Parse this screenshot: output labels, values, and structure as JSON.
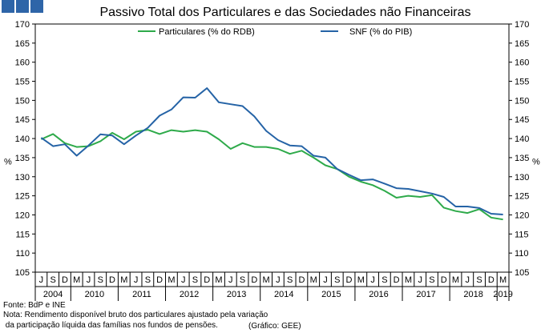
{
  "chart_data": {
    "type": "line",
    "title": "Passivo Total dos Particulares e das Sociedades não Financeiras",
    "ylabel_left": "%",
    "ylabel_right": "%",
    "ylim": [
      105,
      170
    ],
    "yticks": [
      105,
      110,
      115,
      120,
      125,
      130,
      135,
      140,
      145,
      150,
      155,
      160,
      165,
      170
    ],
    "quarter_labels": [
      "J",
      "S",
      "D",
      "M",
      "J",
      "S",
      "D",
      "M",
      "J",
      "S",
      "D",
      "M",
      "J",
      "S",
      "D",
      "M",
      "J",
      "S",
      "D",
      "M",
      "J",
      "S",
      "D",
      "M",
      "J",
      "S",
      "D",
      "M",
      "J",
      "S",
      "D",
      "M",
      "J",
      "S",
      "D",
      "M",
      "J",
      "S",
      "D",
      "M"
    ],
    "year_labels": [
      {
        "label": "2004",
        "start": 0,
        "end": 3
      },
      {
        "label": "2010",
        "start": 3,
        "end": 7
      },
      {
        "label": "2011",
        "start": 7,
        "end": 11
      },
      {
        "label": "2012",
        "start": 11,
        "end": 15
      },
      {
        "label": "2013",
        "start": 15,
        "end": 19
      },
      {
        "label": "2014",
        "start": 19,
        "end": 23
      },
      {
        "label": "2015",
        "start": 23,
        "end": 27
      },
      {
        "label": "2016",
        "start": 27,
        "end": 31
      },
      {
        "label": "2017",
        "start": 31,
        "end": 35
      },
      {
        "label": "2018",
        "start": 35,
        "end": 39
      },
      {
        "label": "2019",
        "start": 39,
        "end": 40
      }
    ],
    "series": [
      {
        "name": "Particulares (% do RDB)",
        "color": "#2eaa4a",
        "values": [
          139.8,
          141.2,
          138.8,
          137.8,
          138.0,
          139.3,
          141.5,
          139.8,
          141.8,
          142.3,
          141.2,
          142.2,
          141.8,
          142.2,
          141.8,
          139.8,
          137.3,
          138.8,
          137.8,
          137.8,
          137.3,
          136.0,
          136.8,
          135.0,
          133.0,
          132.0,
          130.0,
          128.7,
          127.8,
          126.3,
          124.5,
          125.0,
          124.7,
          125.2,
          121.9,
          121.0,
          120.5,
          121.5,
          119.3,
          118.8
        ]
      },
      {
        "name": "SNF (% do PIB)",
        "color": "#2563a6",
        "values": [
          140.2,
          138.0,
          138.5,
          135.5,
          138.2,
          141.1,
          140.8,
          138.5,
          140.8,
          142.8,
          146.0,
          147.6,
          150.8,
          150.7,
          153.2,
          149.5,
          149.0,
          148.5,
          145.8,
          142.0,
          139.6,
          138.2,
          138.0,
          135.5,
          135.0,
          132.0,
          130.5,
          129.1,
          129.3,
          128.2,
          127.0,
          126.8,
          126.2,
          125.6,
          124.7,
          122.2,
          122.2,
          121.8,
          120.3,
          120.1
        ]
      }
    ]
  },
  "footer": {
    "source": "Fonte: BdP e INE",
    "note_line1": "Nota: Rendimento disponível bruto dos particulares ajustado pela variação",
    "note_line2": " da participação líquida das famílias nos fundos de pensões.",
    "credit": "(Gráfico: GEE)"
  }
}
